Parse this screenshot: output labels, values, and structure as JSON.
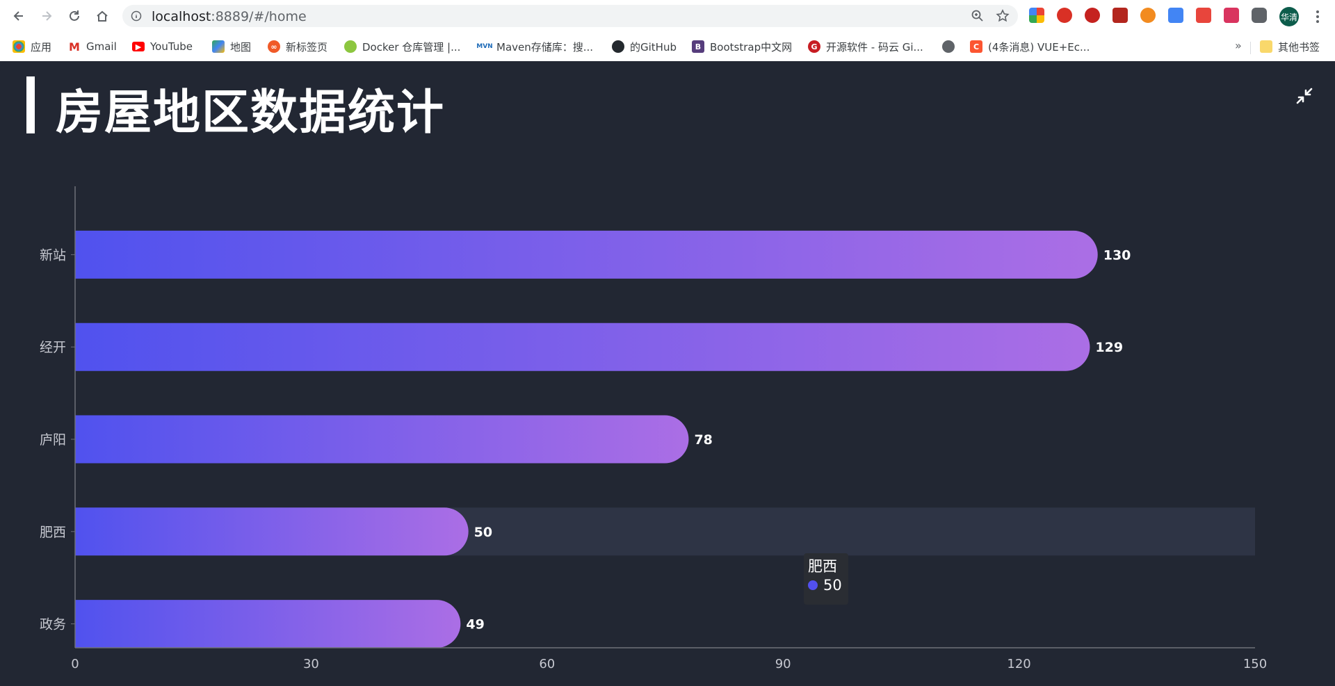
{
  "browser": {
    "url_host": "localhost",
    "url_rest": ":8889/#/home",
    "profile_label": "华清",
    "bookmarks": [
      {
        "label": "应用",
        "icon": "apps-grid-icon"
      },
      {
        "label": "Gmail",
        "icon": "gmail-icon"
      },
      {
        "label": "YouTube",
        "icon": "youtube-icon"
      },
      {
        "label": "地图",
        "icon": "maps-icon"
      },
      {
        "label": "新标签页",
        "icon": "infinity-icon"
      },
      {
        "label": "Docker 仓库管理 |...",
        "icon": "docker-icon"
      },
      {
        "label": "Maven存储库：搜...",
        "icon": "maven-icon"
      },
      {
        "label": "的GitHub",
        "icon": "github-icon"
      },
      {
        "label": "Bootstrap中文网",
        "icon": "bootstrap-icon"
      },
      {
        "label": "开源软件 - 码云 Gi...",
        "icon": "gitee-icon"
      },
      {
        "label": "",
        "icon": "globe-icon"
      },
      {
        "label": "(4条消息) VUE+Ec...",
        "icon": "csdn-icon"
      }
    ],
    "more_bookmarks": "»",
    "other_bookmarks": "其他书签"
  },
  "page": {
    "title": "房屋地区数据统计"
  },
  "chart_data": {
    "type": "bar",
    "orientation": "horizontal",
    "title": "房屋地区数据统计",
    "categories": [
      "新站",
      "经开",
      "庐阳",
      "肥西",
      "政务"
    ],
    "values": [
      130,
      129,
      78,
      50,
      49
    ],
    "xlim": [
      0,
      150
    ],
    "xticks": [
      0,
      30,
      60,
      90,
      120,
      150
    ],
    "grid": false,
    "gradient_colors": [
      "#5052ee",
      "#ab6ee5"
    ],
    "highlight_color": "#2e3445",
    "tooltip": {
      "name": "肥西",
      "value": "50"
    }
  }
}
